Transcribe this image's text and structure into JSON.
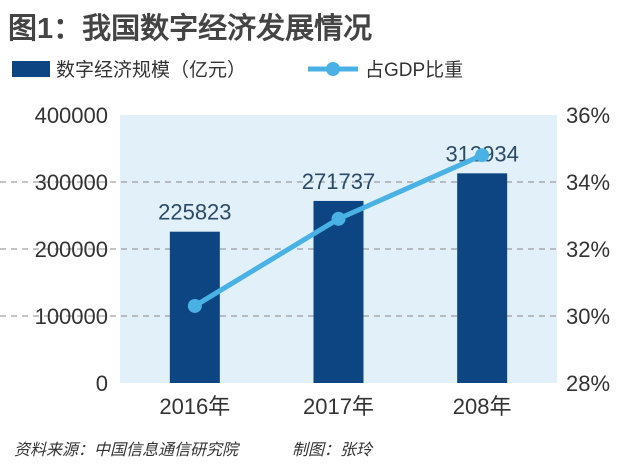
{
  "chart_data": {
    "type": "bar+line",
    "title": "图1：我国数字经济发展情况",
    "categories": [
      "2016年",
      "2017年",
      "208年"
    ],
    "series": [
      {
        "name": "数字经济规模（亿元）",
        "type": "bar",
        "axis": "left",
        "values": [
          225823,
          271737,
          312934
        ],
        "labels": [
          "225823",
          "271737",
          "312934"
        ],
        "color": "#0d4583"
      },
      {
        "name": "占GDP比重",
        "type": "line",
        "axis": "right",
        "values": [
          30.3,
          32.9,
          34.8
        ],
        "color": "#49b1e4"
      }
    ],
    "left_axis": {
      "ylim": [
        0,
        400000
      ],
      "ticks": [
        "0",
        "100000",
        "200000",
        "300000",
        "400000"
      ]
    },
    "right_axis": {
      "ylim": [
        28,
        36
      ],
      "ticks": [
        "28%",
        "30%",
        "32%",
        "34%",
        "36%"
      ]
    },
    "grid": "dashed horizontal",
    "legend_position": "top-left",
    "plot_background": "#e2f0fa",
    "source": "资料来源：中国信息通信研究院",
    "credit": "制图：张玲"
  }
}
